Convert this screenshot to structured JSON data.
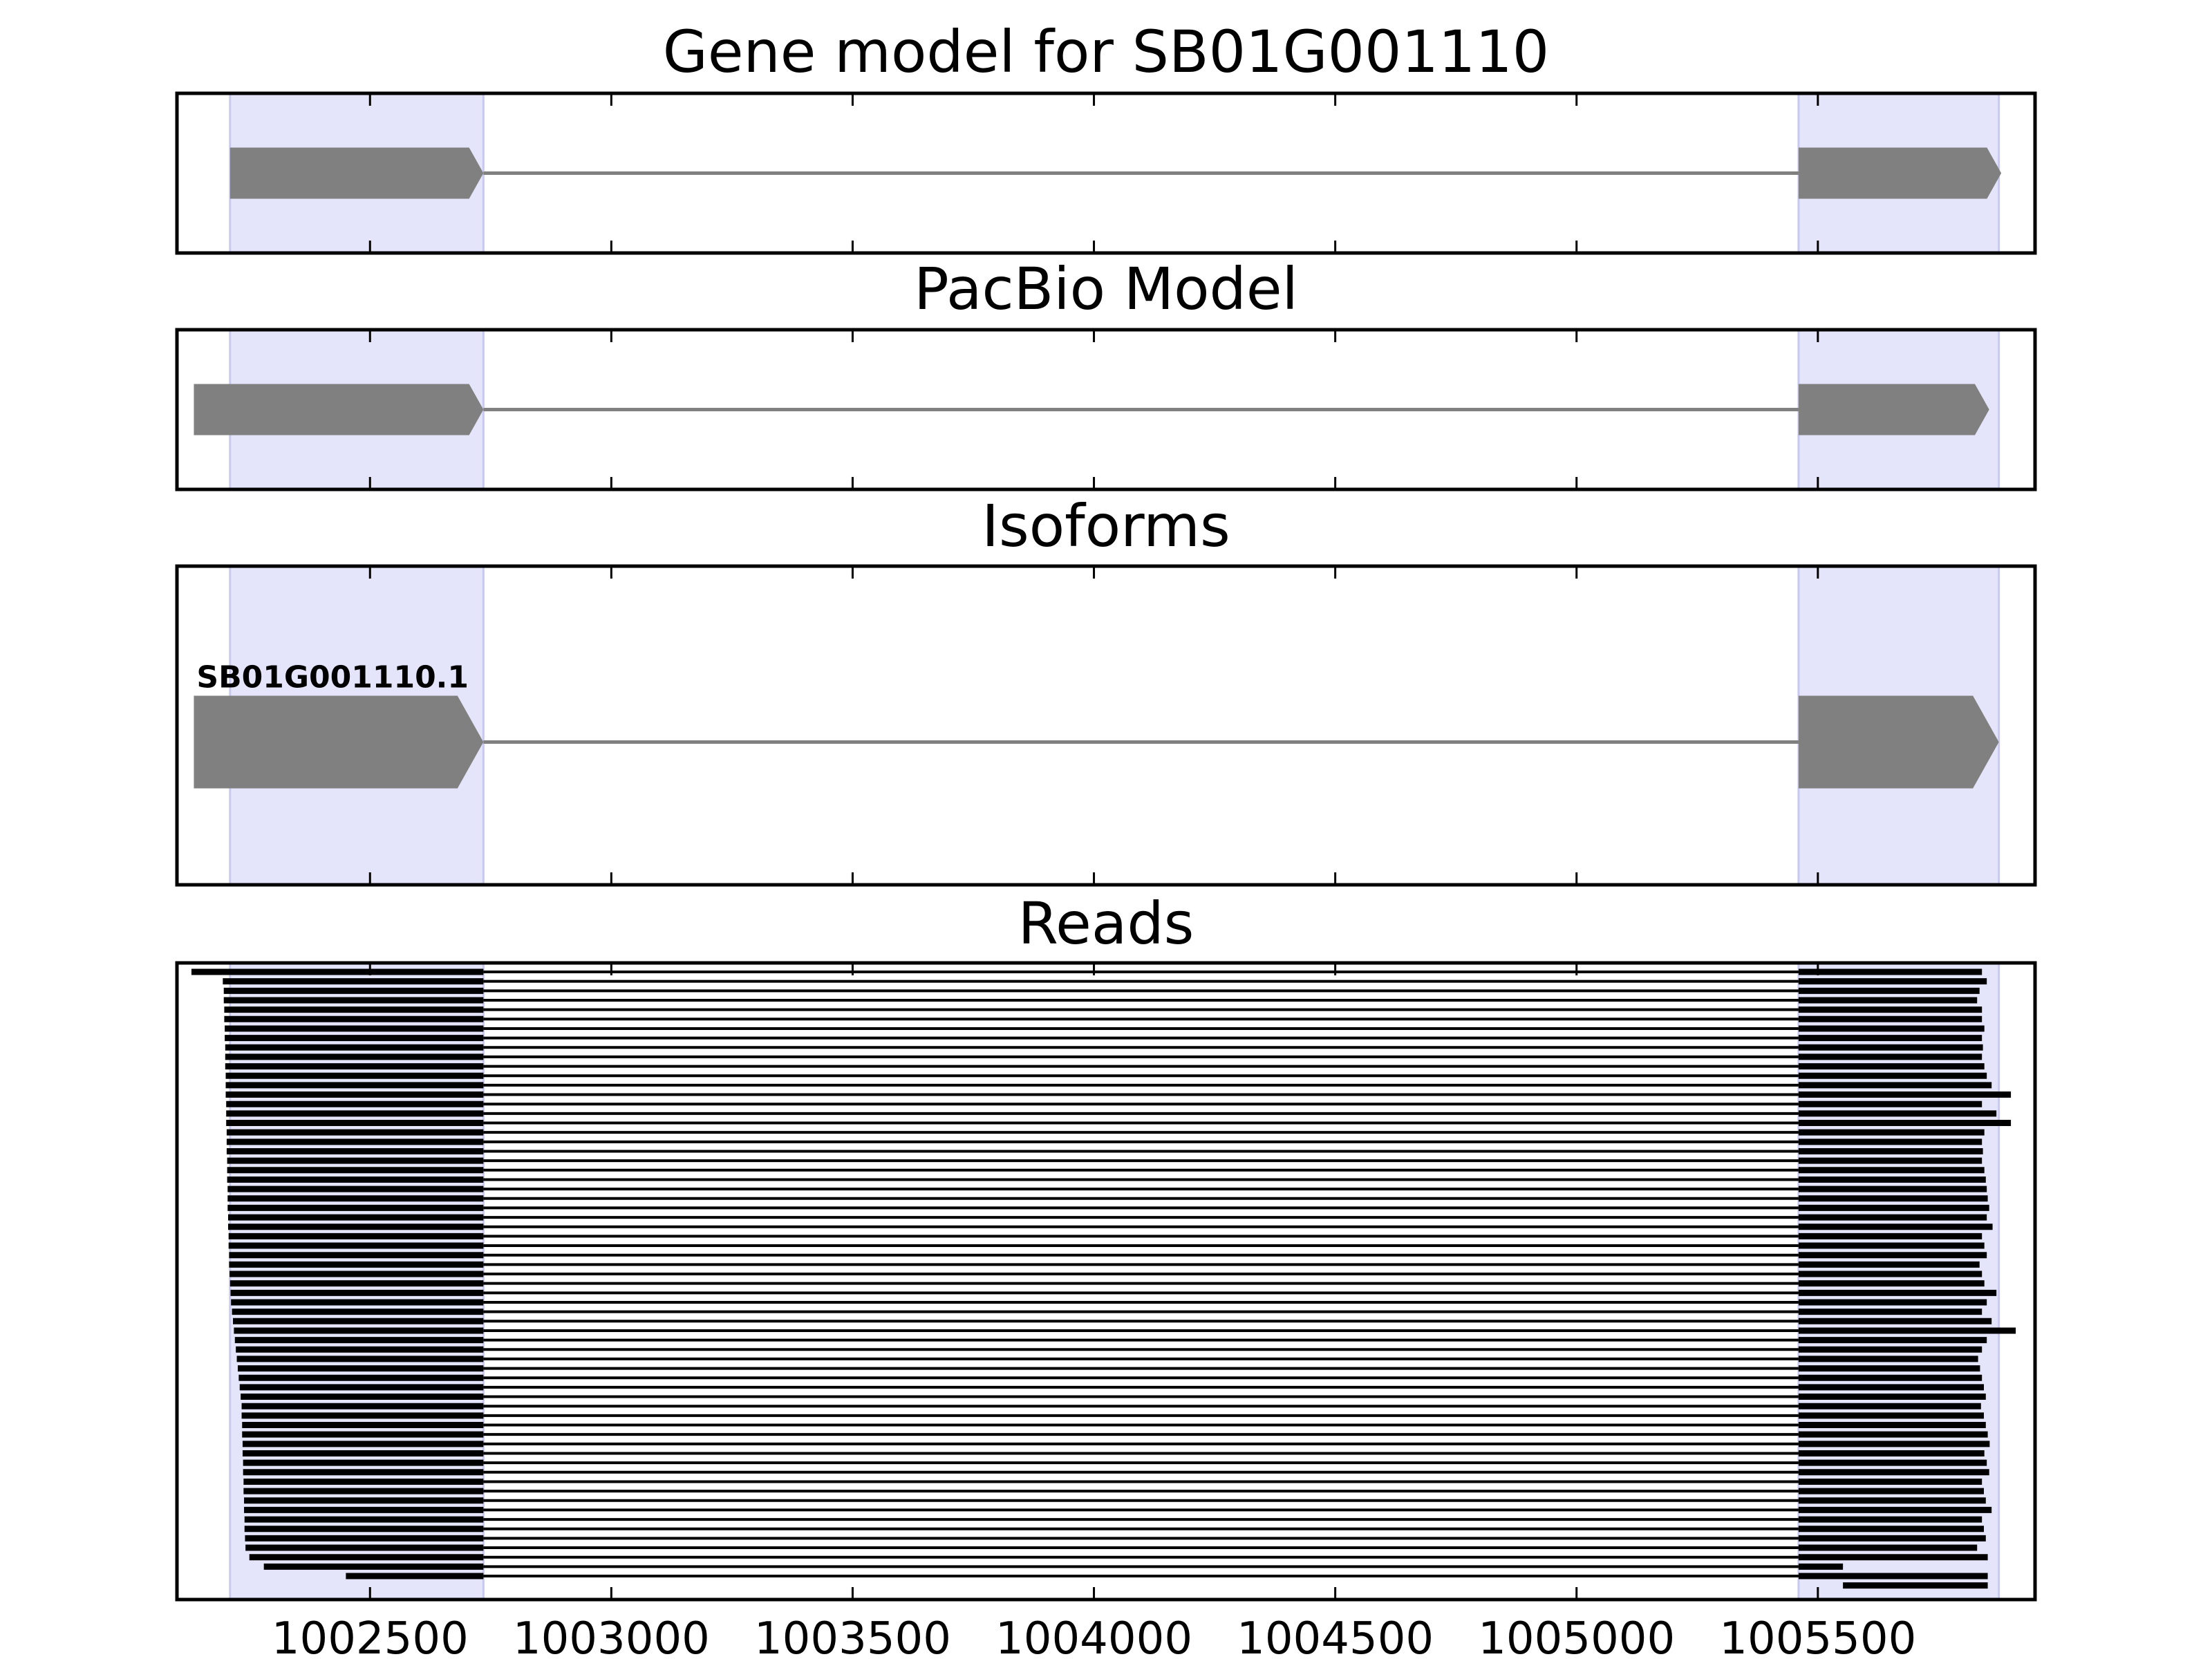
{
  "chart_data": {
    "type": "gene-track",
    "xlim": [
      1002100,
      1005950
    ],
    "xticks": [
      1002500,
      1003000,
      1003500,
      1004000,
      1004500,
      1005000,
      1005500
    ],
    "xtick_labels": [
      "1002500",
      "1003000",
      "1003500",
      "1004000",
      "1004500",
      "1005000",
      "1005500"
    ],
    "highlight_regions": [
      [
        1002210,
        1002735
      ],
      [
        1005460,
        1005875
      ]
    ],
    "colors": {
      "highlight": "#e4e4fb",
      "feature": "#808080",
      "read": "#000000",
      "frame": "#000000"
    },
    "panels": [
      {
        "title": "Gene model for SB01G001110",
        "isoforms": [
          {
            "label": "",
            "exons": [
              [
                1002210,
                1002735
              ],
              [
                1005460,
                1005880
              ]
            ]
          }
        ]
      },
      {
        "title": "PacBio Model",
        "isoforms": [
          {
            "label": "",
            "exons": [
              [
                1002135,
                1002735
              ],
              [
                1005460,
                1005855
              ]
            ]
          }
        ]
      },
      {
        "title": "Isoforms",
        "isoforms": [
          {
            "label": "SB01G001110.1",
            "exons": [
              [
                1002135,
                1002735
              ],
              [
                1005460,
                1005875
              ]
            ]
          }
        ]
      }
    ],
    "reads": {
      "title": "Reads",
      "intron": [
        1002735,
        1005460
      ],
      "starts": [
        1002130,
        1002195,
        1002197,
        1002197,
        1002198,
        1002198,
        1002199,
        1002199,
        1002200,
        1002200,
        1002200,
        1002201,
        1002201,
        1002201,
        1002202,
        1002202,
        1002202,
        1002203,
        1002203,
        1002203,
        1002204,
        1002204,
        1002204,
        1002205,
        1002205,
        1002205,
        1002206,
        1002206,
        1002207,
        1002207,
        1002208,
        1002208,
        1002209,
        1002210,
        1002211,
        1002212,
        1002214,
        1002216,
        1002218,
        1002220,
        1002222,
        1002224,
        1002226,
        1002228,
        1002230,
        1002232,
        1002234,
        1002234,
        1002235,
        1002235,
        1002236,
        1002236,
        1002237,
        1002237,
        1002238,
        1002238,
        1002239,
        1002239,
        1002240,
        1002240,
        1002241,
        1002242,
        1002250,
        1002280,
        1002450
      ],
      "ends": [
        1005840,
        1005850,
        1005835,
        1005830,
        1005840,
        1005840,
        1005845,
        1005840,
        1005842,
        1005840,
        1005845,
        1005850,
        1005860,
        1005900,
        1005840,
        1005870,
        1005900,
        1005845,
        1005840,
        1005842,
        1005840,
        1005845,
        1005848,
        1005850,
        1005852,
        1005855,
        1005850,
        1005862,
        1005840,
        1005845,
        1005850,
        1005835,
        1005840,
        1005845,
        1005870,
        1005850,
        1005840,
        1005860,
        1005910,
        1005850,
        1005840,
        1005832,
        1005836,
        1005840,
        1005844,
        1005848,
        1005838,
        1005844,
        1005848,
        1005852,
        1005856,
        1005845,
        1005850,
        1005855,
        1005840,
        1005844,
        1005848,
        1005860,
        1005840,
        1005844,
        1005848,
        1005830,
        1005852,
        1005552,
        1005852
      ]
    }
  }
}
